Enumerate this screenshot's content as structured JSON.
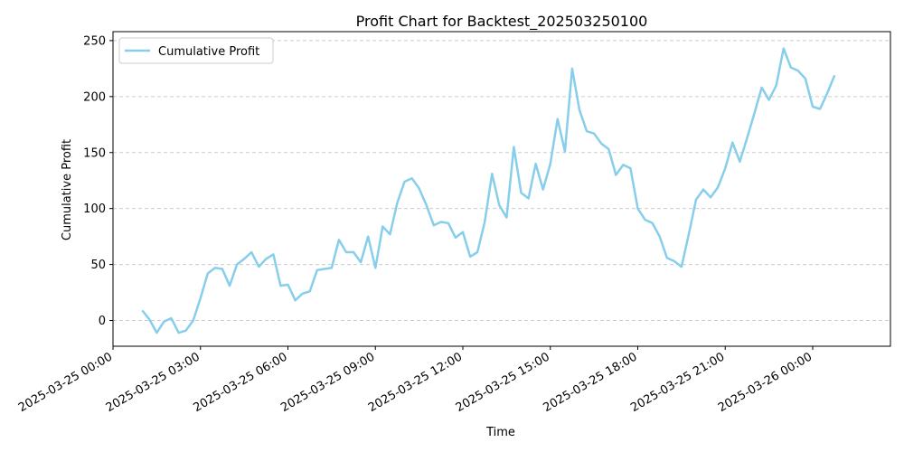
{
  "chart_data": {
    "type": "line",
    "title": "Profit Chart for Backtest_202503250100",
    "xlabel": "Time",
    "ylabel": "Cumulative Profit",
    "ylim": [
      -23,
      258
    ],
    "xlim": [
      "2025-03-25 00:00",
      "2025-03-26 02:40"
    ],
    "grid": "y-dashed",
    "legend_placement": "top-left",
    "y_ticks": [
      0,
      50,
      100,
      150,
      200,
      250
    ],
    "x_ticks": [
      "2025-03-25 00:00",
      "2025-03-25 03:00",
      "2025-03-25 06:00",
      "2025-03-25 09:00",
      "2025-03-25 12:00",
      "2025-03-25 15:00",
      "2025-03-25 18:00",
      "2025-03-25 21:00",
      "2025-03-26 00:00"
    ],
    "color": "#87ceeb",
    "series": [
      {
        "name": "Cumulative Profit",
        "x": [
          "2025-03-25 01:00",
          "2025-03-25 01:15",
          "2025-03-25 01:30",
          "2025-03-25 01:45",
          "2025-03-25 02:00",
          "2025-03-25 02:15",
          "2025-03-25 02:30",
          "2025-03-25 02:45",
          "2025-03-25 03:00",
          "2025-03-25 03:15",
          "2025-03-25 03:30",
          "2025-03-25 03:45",
          "2025-03-25 04:00",
          "2025-03-25 04:15",
          "2025-03-25 04:30",
          "2025-03-25 04:45",
          "2025-03-25 05:00",
          "2025-03-25 05:15",
          "2025-03-25 05:30",
          "2025-03-25 05:45",
          "2025-03-25 06:00",
          "2025-03-25 06:15",
          "2025-03-25 06:30",
          "2025-03-25 06:45",
          "2025-03-25 07:00",
          "2025-03-25 07:15",
          "2025-03-25 07:30",
          "2025-03-25 07:45",
          "2025-03-25 08:00",
          "2025-03-25 08:15",
          "2025-03-25 08:30",
          "2025-03-25 08:45",
          "2025-03-25 09:00",
          "2025-03-25 09:15",
          "2025-03-25 09:30",
          "2025-03-25 09:45",
          "2025-03-25 10:00",
          "2025-03-25 10:15",
          "2025-03-25 10:30",
          "2025-03-25 10:45",
          "2025-03-25 11:00",
          "2025-03-25 11:15",
          "2025-03-25 11:30",
          "2025-03-25 11:45",
          "2025-03-25 12:00",
          "2025-03-25 12:15",
          "2025-03-25 12:30",
          "2025-03-25 12:45",
          "2025-03-25 13:00",
          "2025-03-25 13:15",
          "2025-03-25 13:30",
          "2025-03-25 13:45",
          "2025-03-25 14:00",
          "2025-03-25 14:15",
          "2025-03-25 14:30",
          "2025-03-25 14:45",
          "2025-03-25 15:00",
          "2025-03-25 15:15",
          "2025-03-25 15:30",
          "2025-03-25 15:45",
          "2025-03-25 16:00",
          "2025-03-25 16:15",
          "2025-03-25 16:30",
          "2025-03-25 16:45",
          "2025-03-25 17:00",
          "2025-03-25 17:15",
          "2025-03-25 17:30",
          "2025-03-25 17:45",
          "2025-03-25 18:00",
          "2025-03-25 18:15",
          "2025-03-25 18:30",
          "2025-03-25 18:45",
          "2025-03-25 19:00",
          "2025-03-25 19:15",
          "2025-03-25 19:30",
          "2025-03-25 19:45",
          "2025-03-25 20:00",
          "2025-03-25 20:15",
          "2025-03-25 20:30",
          "2025-03-25 20:45",
          "2025-03-25 21:00",
          "2025-03-25 21:15",
          "2025-03-25 21:30",
          "2025-03-25 21:45",
          "2025-03-25 22:00",
          "2025-03-25 22:15",
          "2025-03-25 22:30",
          "2025-03-25 22:45",
          "2025-03-25 23:00",
          "2025-03-25 23:15",
          "2025-03-25 23:30",
          "2025-03-25 23:45",
          "2025-03-26 00:00",
          "2025-03-26 00:15",
          "2025-03-26 00:30",
          "2025-03-26 00:45"
        ],
        "values": [
          9,
          1,
          -11,
          -1,
          2,
          -11,
          -9,
          0,
          20,
          42,
          47,
          46,
          31,
          50,
          55,
          61,
          48,
          55,
          59,
          31,
          32,
          18,
          24,
          26,
          45,
          46,
          47,
          72,
          61,
          61,
          52,
          75,
          47,
          84,
          77,
          105,
          124,
          127,
          118,
          103,
          85,
          88,
          87,
          74,
          79,
          57,
          61,
          88,
          131,
          103,
          92,
          155,
          114,
          109,
          140,
          117,
          140,
          180,
          151,
          225,
          188,
          169,
          167,
          158,
          153,
          130,
          139,
          136,
          100,
          90,
          87,
          75,
          56,
          53,
          48,
          77,
          108,
          117,
          110,
          119,
          136,
          159,
          142,
          163,
          185,
          208,
          197,
          210,
          243,
          226,
          223,
          216,
          191,
          189,
          203,
          219
        ]
      }
    ]
  }
}
